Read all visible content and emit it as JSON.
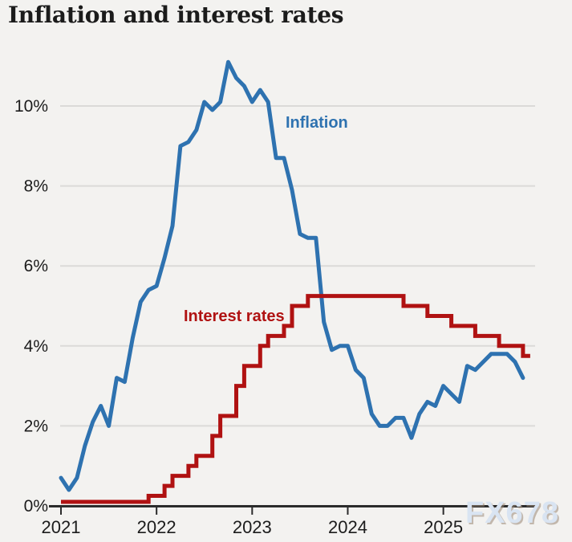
{
  "page": {
    "title": "Inflation and interest rates",
    "watermark": "FX678"
  },
  "colors": {
    "background": "#f3f2f0",
    "grid": "#dbdad8",
    "axis": "#2b2b2b",
    "inflation_line": "#2e72b0",
    "interest_line": "#b01212",
    "watermark": "#d9e4f2"
  },
  "chart_data": {
    "type": "line",
    "title": "Inflation and interest rates",
    "grid": "horizontal",
    "legend_position": "inline-labels",
    "x_ticks": [
      "2021",
      "2022",
      "2023",
      "2024",
      "2025"
    ],
    "y_ticks": [
      "0%",
      "2%",
      "4%",
      "6%",
      "8%",
      "10%"
    ],
    "y_tick_values": [
      0,
      2,
      4,
      6,
      8,
      10
    ],
    "ylim": [
      0,
      11.6
    ],
    "x_months": [
      "2021-01",
      "2021-02",
      "2021-03",
      "2021-04",
      "2021-05",
      "2021-06",
      "2021-07",
      "2021-08",
      "2021-09",
      "2021-10",
      "2021-11",
      "2021-12",
      "2022-01",
      "2022-02",
      "2022-03",
      "2022-04",
      "2022-05",
      "2022-06",
      "2022-07",
      "2022-08",
      "2022-09",
      "2022-10",
      "2022-11",
      "2022-12",
      "2023-01",
      "2023-02",
      "2023-03",
      "2023-04",
      "2023-05",
      "2023-06",
      "2023-07",
      "2023-08",
      "2023-09",
      "2023-10",
      "2023-11",
      "2023-12",
      "2024-01",
      "2024-02",
      "2024-03",
      "2024-04",
      "2024-05",
      "2024-06",
      "2024-07",
      "2024-08",
      "2024-09",
      "2024-10",
      "2024-11",
      "2024-12",
      "2025-01",
      "2025-02",
      "2025-03",
      "2025-04",
      "2025-05",
      "2025-06",
      "2025-07",
      "2025-08",
      "2025-09",
      "2025-10",
      "2025-11"
    ],
    "series": [
      {
        "name": "inflation",
        "label": "Inflation",
        "type": "line",
        "color": "#2e72b0",
        "values": [
          0.7,
          0.4,
          0.7,
          1.5,
          2.1,
          2.5,
          2.0,
          3.2,
          3.1,
          4.2,
          5.1,
          5.4,
          5.5,
          6.2,
          7.0,
          9.0,
          9.1,
          9.4,
          10.1,
          9.9,
          10.1,
          11.1,
          10.7,
          10.5,
          10.1,
          10.4,
          10.1,
          8.7,
          8.7,
          7.9,
          6.8,
          6.7,
          6.7,
          4.6,
          3.9,
          4.0,
          4.0,
          3.4,
          3.2,
          2.3,
          2.0,
          2.0,
          2.2,
          2.2,
          1.7,
          2.3,
          2.6,
          2.5,
          3.0,
          2.8,
          2.6,
          3.5,
          3.4,
          3.6,
          3.8,
          3.8,
          3.8,
          3.6,
          3.2
        ]
      },
      {
        "name": "interest-rates",
        "label": "Interest rates",
        "type": "step-after",
        "color": "#b01212",
        "values": [
          0.1,
          0.1,
          0.1,
          0.1,
          0.1,
          0.1,
          0.1,
          0.1,
          0.1,
          0.1,
          0.1,
          0.25,
          0.25,
          0.5,
          0.75,
          0.75,
          1.0,
          1.25,
          1.25,
          1.75,
          2.25,
          2.25,
          3.0,
          3.5,
          3.5,
          4.0,
          4.25,
          4.25,
          4.5,
          5.0,
          5.0,
          5.25,
          5.25,
          5.25,
          5.25,
          5.25,
          5.25,
          5.25,
          5.25,
          5.25,
          5.25,
          5.25,
          5.25,
          5.0,
          5.0,
          5.0,
          4.75,
          4.75,
          4.75,
          4.5,
          4.5,
          4.5,
          4.25,
          4.25,
          4.25,
          4.0,
          4.0,
          4.0,
          3.75
        ]
      }
    ]
  }
}
